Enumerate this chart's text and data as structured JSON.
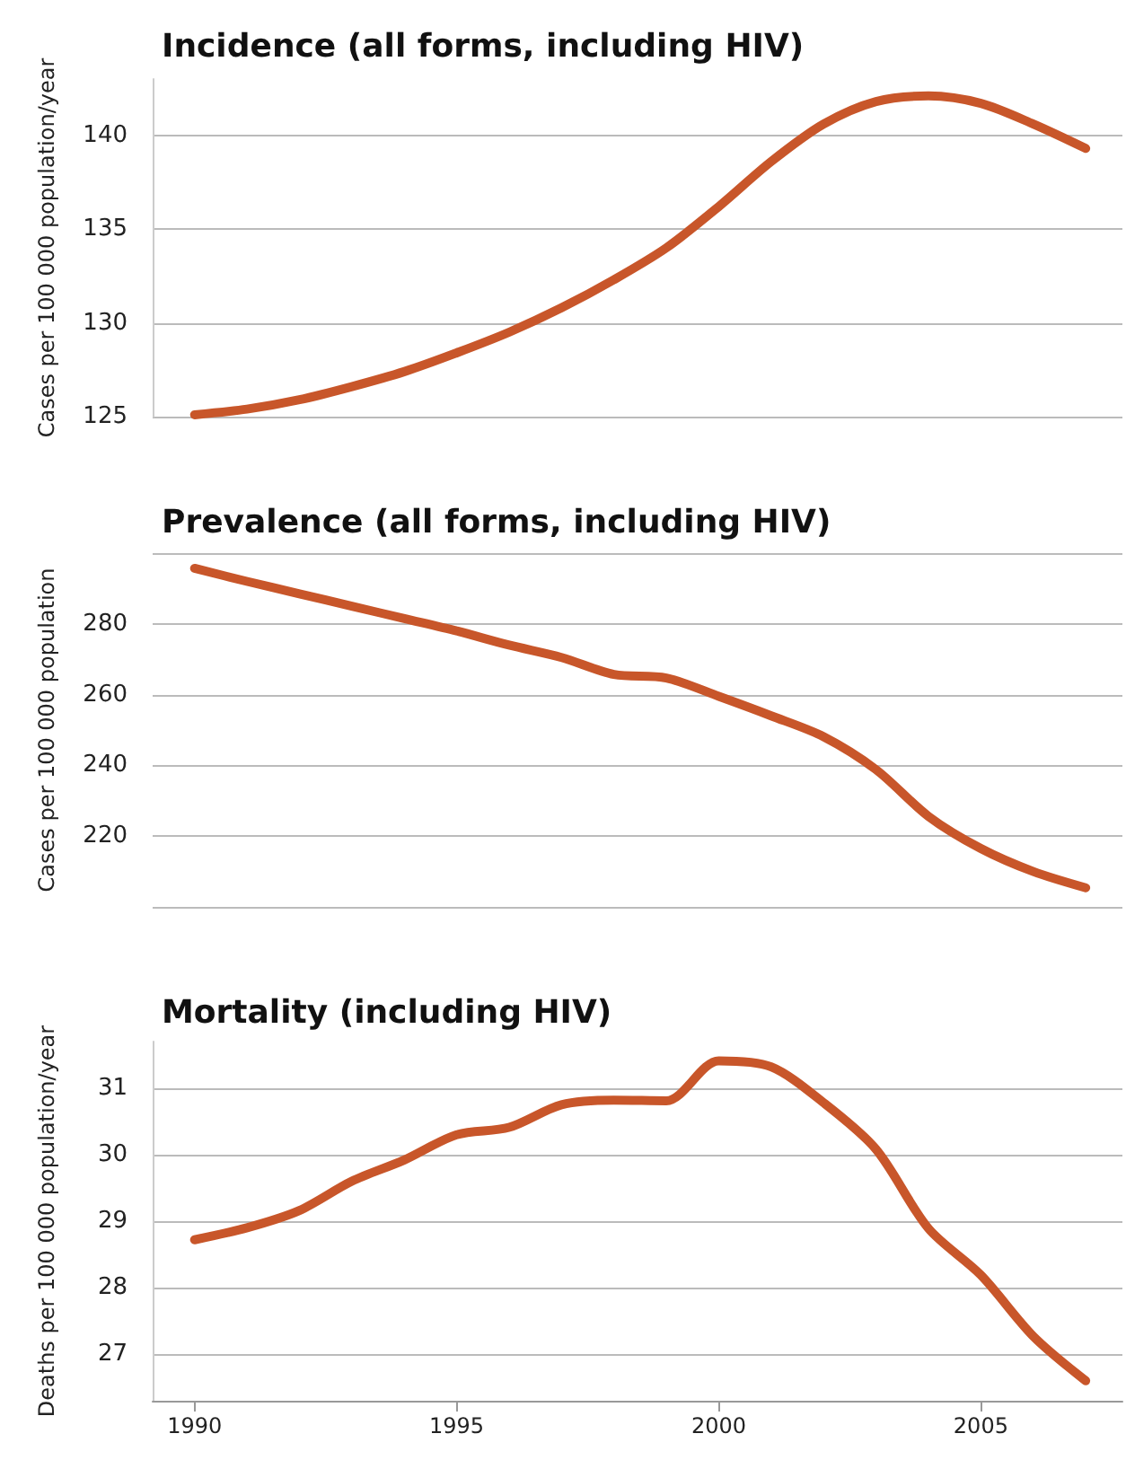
{
  "chart_data": [
    {
      "type": "line",
      "title": "Incidence (all forms, including HIV)",
      "ylabel": "Cases per 100 000 population/year",
      "x": [
        1990,
        1991,
        1992,
        1993,
        1994,
        1995,
        1996,
        1997,
        1998,
        1999,
        2000,
        2001,
        2002,
        2003,
        2004,
        2005,
        2006,
        2007
      ],
      "series": [
        {
          "color": "#c8562a",
          "values": [
            125.1,
            125.4,
            125.9,
            126.6,
            127.4,
            128.4,
            129.5,
            130.8,
            132.3,
            134.0,
            136.2,
            138.6,
            140.6,
            141.8,
            142.1,
            141.7,
            140.6,
            139.3
          ]
        }
      ],
      "xlim": [
        1989.2,
        2007.7
      ],
      "xticks": [
        1990,
        1995,
        2000,
        2005
      ],
      "ylim": [
        125,
        143
      ],
      "yticks": [
        125,
        130,
        135,
        140
      ],
      "grid": "y",
      "tick_labels": "y",
      "marker": "none",
      "line_style": "solid"
    },
    {
      "type": "line",
      "title": "Prevalence (all forms, including HIV)",
      "ylabel": "Cases per 100 000 population",
      "x": [
        1990,
        1991,
        1992,
        1993,
        1994,
        1995,
        1996,
        1997,
        1998,
        1999,
        2000,
        2001,
        2002,
        2003,
        2004,
        2005,
        2006,
        2007
      ],
      "series": [
        {
          "color": "#c8562a",
          "values": [
            295.7,
            292,
            288.5,
            285,
            281.5,
            278,
            274,
            270.5,
            265.7,
            264.7,
            259.5,
            254,
            248.1,
            238.8,
            225.6,
            216.5,
            210,
            205.4
          ]
        }
      ],
      "xlim": [
        1989.2,
        2007.7
      ],
      "xticks": [
        1990,
        1995,
        2000,
        2005
      ],
      "ylim": [
        200,
        300
      ],
      "yticks": [
        {
          "value": 200,
          "label": null
        },
        220,
        240,
        260,
        280,
        {
          "value": 300,
          "label": null
        }
      ],
      "grid": "y",
      "tick_labels": "y",
      "marker": "none",
      "line_style": "solid"
    },
    {
      "type": "line",
      "title": "Mortality (including HIV)",
      "ylabel": "Deaths per 100 000 population/year",
      "x": [
        1990,
        1991,
        1992,
        1993,
        1994,
        1995,
        1996,
        1997,
        1998,
        1999,
        2000,
        2001,
        2002,
        2003,
        2004,
        2005,
        2006,
        2007
      ],
      "series": [
        {
          "color": "#c8562a",
          "values": [
            28.72,
            28.9,
            29.16,
            29.6,
            29.92,
            30.3,
            30.41,
            30.75,
            30.82,
            30.81,
            31.41,
            31.32,
            30.78,
            30.08,
            28.89,
            28.19,
            27.27,
            26.6
          ]
        }
      ],
      "xlim": [
        1989.2,
        2007.7
      ],
      "xticks": [
        1990,
        1995,
        2000,
        2005
      ],
      "ylim": [
        26.3,
        31.7
      ],
      "yticks": [
        27,
        28,
        29,
        30,
        31
      ],
      "grid": "y",
      "marker": "none",
      "line_style": "solid"
    }
  ]
}
